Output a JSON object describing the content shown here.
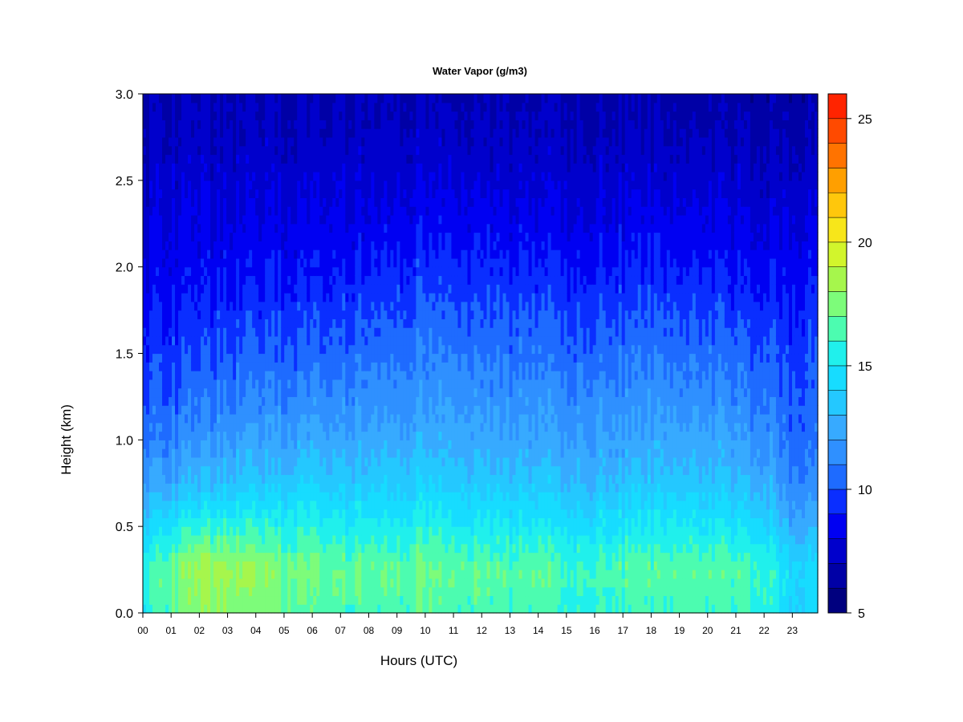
{
  "chart_data": {
    "type": "heatmap",
    "title": "Water Vapor (g/m3)",
    "xlabel": "Hours (UTC)",
    "ylabel": "Height (km)",
    "x_tick_labels": [
      "00",
      "01",
      "02",
      "03",
      "04",
      "05",
      "06",
      "07",
      "08",
      "09",
      "10",
      "11",
      "12",
      "13",
      "14",
      "15",
      "16",
      "17",
      "18",
      "19",
      "20",
      "21",
      "22",
      "23"
    ],
    "xlim": [
      0,
      23.9
    ],
    "y_tick_labels": [
      "0.0",
      "0.5",
      "1.0",
      "1.5",
      "2.0",
      "2.5",
      "3.0"
    ],
    "y_ticks": [
      0,
      0.5,
      1.0,
      1.5,
      2.0,
      2.5,
      3.0
    ],
    "ylim": [
      0,
      3.0
    ],
    "colorbar": {
      "min": 5,
      "max": 26,
      "step": 1,
      "tick_values": [
        5,
        10,
        15,
        20,
        25
      ],
      "tick_labels": [
        "5",
        "10",
        "15",
        "20",
        "25"
      ],
      "colors": [
        "#00007f",
        "#0000a6",
        "#0000cc",
        "#0000f2",
        "#0a2eff",
        "#1e6bff",
        "#2f90ff",
        "#37aaff",
        "#24c8ff",
        "#17dcff",
        "#20f0ec",
        "#4cfcb0",
        "#7dfc7a",
        "#a6f64c",
        "#d2f52c",
        "#f7e61a",
        "#ffc70c",
        "#ff9f00",
        "#ff7300",
        "#ff4a00",
        "#ff2400",
        "#ed0000",
        "#c40000",
        "#8e0000"
      ]
    },
    "hours": [
      0,
      1,
      2,
      3,
      4,
      5,
      6,
      7,
      8,
      9,
      10,
      11,
      12,
      13,
      14,
      15,
      16,
      17,
      18,
      19,
      20,
      21,
      22,
      23
    ],
    "heights_km": [
      0.0,
      0.25,
      0.5,
      0.75,
      1.0,
      1.25,
      1.5,
      1.75,
      2.0,
      2.25,
      2.5,
      2.75,
      3.0
    ],
    "profiles_g_m3": [
      [
        15.2,
        16.0,
        14.0,
        12.0,
        10.8,
        10.0,
        9.4,
        8.8,
        8.3,
        7.9,
        7.5,
        7.1,
        6.8
      ],
      [
        16.5,
        17.2,
        15.0,
        12.5,
        11.2,
        10.4,
        9.6,
        9.0,
        8.4,
        8.0,
        7.6,
        7.2,
        6.9
      ],
      [
        17.5,
        18.3,
        15.7,
        13.0,
        11.6,
        10.6,
        9.8,
        9.1,
        8.5,
        8.0,
        7.6,
        7.2,
        6.9
      ],
      [
        17.8,
        18.6,
        16.0,
        13.4,
        12.0,
        11.0,
        10.2,
        9.4,
        8.7,
        8.1,
        7.7,
        7.3,
        7.0
      ],
      [
        17.3,
        18.0,
        15.8,
        13.6,
        12.2,
        11.2,
        10.3,
        9.5,
        8.8,
        8.2,
        7.7,
        7.3,
        7.0
      ],
      [
        16.8,
        17.4,
        15.5,
        13.5,
        12.1,
        11.1,
        10.2,
        9.4,
        8.7,
        8.1,
        7.6,
        7.2,
        6.9
      ],
      [
        16.6,
        17.2,
        15.6,
        14.0,
        12.5,
        11.4,
        10.4,
        9.6,
        8.8,
        8.2,
        7.7,
        7.2,
        6.9
      ],
      [
        16.3,
        17.0,
        15.2,
        13.6,
        12.3,
        11.3,
        10.4,
        9.6,
        8.8,
        8.2,
        7.7,
        7.2,
        6.9
      ],
      [
        16.3,
        17.0,
        15.2,
        13.6,
        12.4,
        11.5,
        10.6,
        9.8,
        9.0,
        8.3,
        7.7,
        7.2,
        6.9
      ],
      [
        16.4,
        17.1,
        15.4,
        13.8,
        12.6,
        11.6,
        10.8,
        10.0,
        9.2,
        8.4,
        7.8,
        7.3,
        6.9
      ],
      [
        16.6,
        17.2,
        15.5,
        14.0,
        12.7,
        11.8,
        11.0,
        10.2,
        9.4,
        8.6,
        7.9,
        7.3,
        6.9
      ],
      [
        16.4,
        17.0,
        15.3,
        13.8,
        12.6,
        11.8,
        11.0,
        10.2,
        9.4,
        8.6,
        7.9,
        7.3,
        6.9
      ],
      [
        16.3,
        16.9,
        15.2,
        13.6,
        12.5,
        11.7,
        10.9,
        10.1,
        9.3,
        8.5,
        7.8,
        7.2,
        6.8
      ],
      [
        16.2,
        16.8,
        15.0,
        13.4,
        12.3,
        11.5,
        10.7,
        9.9,
        9.1,
        8.4,
        7.7,
        7.2,
        6.8
      ],
      [
        16.4,
        17.0,
        15.2,
        13.6,
        12.4,
        11.6,
        10.8,
        10.0,
        9.2,
        8.4,
        7.7,
        7.2,
        6.8
      ],
      [
        15.6,
        16.2,
        14.6,
        13.0,
        12.0,
        11.2,
        10.4,
        9.6,
        8.8,
        8.1,
        7.5,
        7.0,
        6.7
      ],
      [
        15.8,
        16.4,
        14.8,
        13.2,
        12.2,
        11.4,
        10.6,
        9.8,
        9.0,
        8.2,
        7.6,
        7.1,
        6.7
      ],
      [
        15.9,
        16.5,
        14.9,
        13.3,
        12.2,
        11.4,
        10.6,
        9.8,
        9.0,
        8.3,
        7.6,
        7.1,
        6.7
      ],
      [
        16.1,
        16.7,
        15.1,
        13.5,
        12.4,
        11.6,
        10.8,
        10.0,
        9.2,
        8.4,
        7.7,
        7.1,
        6.7
      ],
      [
        16.3,
        16.9,
        15.3,
        13.7,
        12.5,
        11.6,
        10.8,
        10.0,
        9.2,
        8.4,
        7.7,
        7.1,
        6.7
      ],
      [
        16.1,
        16.7,
        15.0,
        13.4,
        12.3,
        11.4,
        10.6,
        9.8,
        9.0,
        8.2,
        7.6,
        7.0,
        6.6
      ],
      [
        16.0,
        16.6,
        14.8,
        13.2,
        12.1,
        11.2,
        10.4,
        9.6,
        8.8,
        8.1,
        7.5,
        7.0,
        6.6
      ],
      [
        15.8,
        16.3,
        14.5,
        12.9,
        11.8,
        11.0,
        10.2,
        9.4,
        8.7,
        8.0,
        7.4,
        6.9,
        6.5
      ],
      [
        14.2,
        14.4,
        12.6,
        11.2,
        10.6,
        10.2,
        9.8,
        9.2,
        8.6,
        8.0,
        7.4,
        6.9,
        6.5
      ]
    ]
  }
}
